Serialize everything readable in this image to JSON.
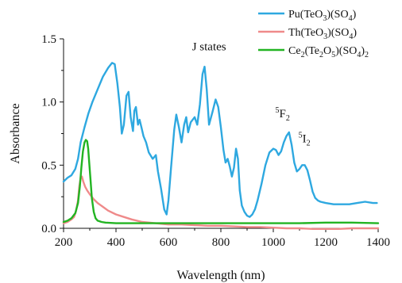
{
  "chart_data": {
    "type": "line",
    "xlabel": "Wavelength (nm)",
    "ylabel": "Absorbance",
    "xlim": [
      200,
      1400
    ],
    "ylim": [
      0.0,
      1.5
    ],
    "xticks": [
      200,
      400,
      600,
      800,
      1000,
      1200,
      1400
    ],
    "yticks": [
      0.0,
      0.5,
      1.0,
      1.5
    ],
    "xtick_labels": [
      "200",
      "400",
      "600",
      "800",
      "1000",
      "1200",
      "1400"
    ],
    "ytick_labels": [
      "0.0",
      "0.5",
      "1.0",
      "1.5"
    ],
    "grid": false,
    "legend_position": "top-right",
    "annotations": [
      {
        "text": "J states",
        "x": 755,
        "y": 1.41
      },
      {
        "text": "5F2",
        "x": 1050,
        "y": 0.88
      },
      {
        "text": "5I2",
        "x": 1120,
        "y": 0.68
      }
    ],
    "series": [
      {
        "name": "Pu(TeO3)(SO4)",
        "color": "#2ea8e0",
        "x": [
          200,
          215,
          230,
          245,
          255,
          265,
          280,
          295,
          310,
          330,
          350,
          370,
          385,
          395,
          405,
          415,
          422,
          430,
          440,
          448,
          456,
          465,
          470,
          476,
          484,
          490,
          497,
          505,
          515,
          525,
          540,
          552,
          560,
          572,
          584,
          593,
          600,
          610,
          622,
          630,
          640,
          650,
          660,
          668,
          675,
          685,
          700,
          710,
          720,
          730,
          738,
          746,
          755,
          768,
          780,
          790,
          800,
          810,
          818,
          826,
          834,
          842,
          850,
          858,
          865,
          872,
          880,
          890,
          900,
          910,
          920,
          930,
          940,
          955,
          970,
          985,
          1000,
          1010,
          1020,
          1030,
          1040,
          1050,
          1060,
          1070,
          1080,
          1090,
          1100,
          1110,
          1120,
          1130,
          1140,
          1150,
          1160,
          1170,
          1180,
          1200,
          1230,
          1260,
          1290,
          1320,
          1350,
          1380,
          1395
        ],
        "y": [
          0.37,
          0.4,
          0.42,
          0.47,
          0.55,
          0.68,
          0.8,
          0.91,
          1.0,
          1.1,
          1.2,
          1.27,
          1.31,
          1.3,
          1.15,
          0.96,
          0.75,
          0.82,
          1.05,
          1.08,
          0.88,
          0.77,
          0.93,
          0.96,
          0.82,
          0.86,
          0.8,
          0.73,
          0.68,
          0.6,
          0.55,
          0.58,
          0.45,
          0.31,
          0.15,
          0.11,
          0.22,
          0.48,
          0.78,
          0.9,
          0.8,
          0.68,
          0.82,
          0.88,
          0.76,
          0.84,
          0.88,
          0.82,
          0.98,
          1.22,
          1.28,
          1.1,
          0.82,
          0.92,
          1.02,
          0.96,
          0.8,
          0.62,
          0.52,
          0.55,
          0.49,
          0.41,
          0.48,
          0.63,
          0.55,
          0.3,
          0.18,
          0.13,
          0.1,
          0.09,
          0.11,
          0.15,
          0.22,
          0.35,
          0.5,
          0.6,
          0.63,
          0.62,
          0.58,
          0.61,
          0.68,
          0.73,
          0.76,
          0.66,
          0.52,
          0.45,
          0.47,
          0.5,
          0.5,
          0.46,
          0.38,
          0.29,
          0.24,
          0.22,
          0.21,
          0.2,
          0.19,
          0.19,
          0.19,
          0.2,
          0.21,
          0.2,
          0.2
        ]
      },
      {
        "name": "Th(TeO3)(SO4)",
        "color": "#ef8a8a",
        "x": [
          200,
          215,
          230,
          240,
          248,
          255,
          260,
          265,
          270,
          275,
          282,
          290,
          300,
          315,
          330,
          350,
          370,
          400,
          430,
          460,
          500,
          550,
          600,
          650,
          700,
          750,
          800,
          850,
          900,
          950,
          1000,
          1050,
          1100,
          1150,
          1200,
          1250,
          1300,
          1350,
          1400
        ],
        "y": [
          0.04,
          0.05,
          0.07,
          0.09,
          0.14,
          0.22,
          0.33,
          0.4,
          0.41,
          0.37,
          0.33,
          0.3,
          0.27,
          0.23,
          0.2,
          0.17,
          0.14,
          0.11,
          0.09,
          0.07,
          0.05,
          0.04,
          0.03,
          0.03,
          0.025,
          0.02,
          0.02,
          0.015,
          0.01,
          0.01,
          0.005,
          0.0,
          0.0,
          -0.005,
          -0.005,
          -0.005,
          0.0,
          0.0,
          0.0
        ]
      },
      {
        "name": "Ce2(Te2O5)(SO4)2",
        "color": "#22b422",
        "x": [
          200,
          215,
          230,
          245,
          255,
          262,
          268,
          274,
          280,
          285,
          290,
          294,
          298,
          303,
          308,
          315,
          322,
          330,
          345,
          360,
          400,
          450,
          500,
          600,
          700,
          800,
          900,
          1000,
          1100,
          1200,
          1300,
          1400
        ],
        "y": [
          0.05,
          0.06,
          0.08,
          0.12,
          0.2,
          0.33,
          0.48,
          0.61,
          0.68,
          0.7,
          0.69,
          0.63,
          0.52,
          0.38,
          0.24,
          0.13,
          0.08,
          0.06,
          0.05,
          0.045,
          0.04,
          0.04,
          0.04,
          0.04,
          0.04,
          0.04,
          0.04,
          0.04,
          0.04,
          0.045,
          0.045,
          0.04
        ]
      }
    ]
  }
}
